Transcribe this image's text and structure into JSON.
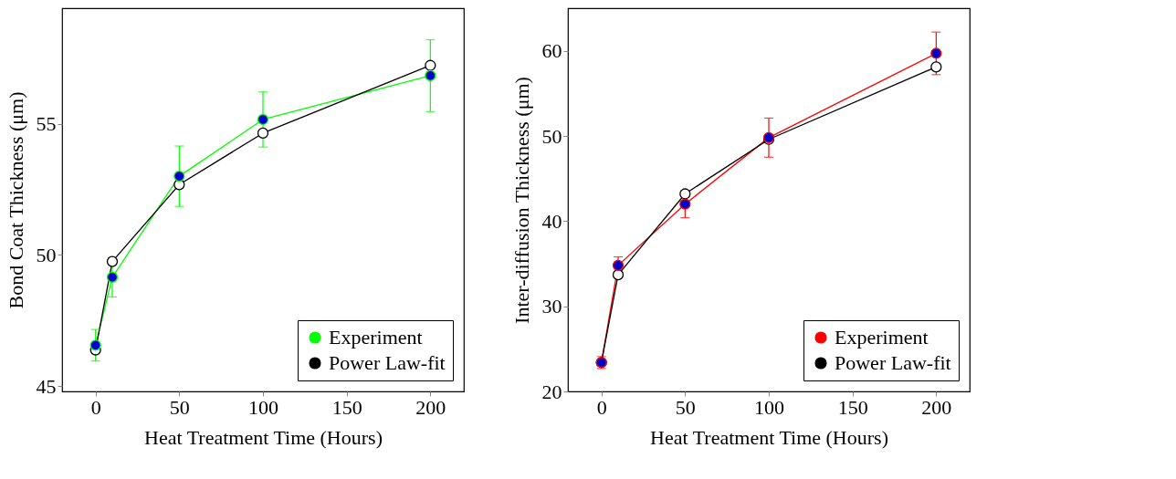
{
  "chart_data": [
    {
      "type": "line",
      "xlabel": "Heat Treatment Time (Hours)",
      "ylabel": "Bond Coat Thickness (μm)",
      "xlim": [
        -20,
        220
      ],
      "xticks": [
        0,
        50,
        100,
        150,
        200
      ],
      "ylim": [
        44.8,
        59.4
      ],
      "yticks": [
        45,
        50,
        55
      ],
      "grid": false,
      "legend": "bottom right",
      "marker": "circle",
      "line_style": "solid",
      "series": [
        {
          "name": "Experiment",
          "color": "#00ff00",
          "x": [
            0,
            10,
            50,
            100,
            200
          ],
          "values": [
            46.56,
            49.15,
            53.0,
            55.16,
            56.83
          ],
          "errors": [
            0.6,
            0.75,
            1.15,
            1.05,
            1.37
          ]
        },
        {
          "name": "Power Law-fit",
          "color": "#000000",
          "x": [
            0,
            10,
            50,
            100,
            200
          ],
          "values": [
            46.38,
            49.75,
            52.68,
            54.64,
            57.22
          ]
        }
      ]
    },
    {
      "type": "line",
      "xlabel": "Heat Treatment Time (Hours)",
      "ylabel": "Inter-diffusion Thickness (μm)",
      "xlim": [
        -20,
        220
      ],
      "xticks": [
        0,
        50,
        100,
        150,
        200
      ],
      "ylim": [
        20,
        65
      ],
      "yticks": [
        20,
        30,
        40,
        50,
        60
      ],
      "grid": false,
      "legend": "bottom right",
      "marker": "circle",
      "line_style": "solid",
      "series": [
        {
          "name": "Experiment",
          "color": "#ff0000",
          "x": [
            0,
            10,
            50,
            100,
            200
          ],
          "values": [
            23.4,
            34.8,
            42.0,
            49.8,
            59.7
          ],
          "errors": [
            0.7,
            1.0,
            1.6,
            2.3,
            2.5
          ]
        },
        {
          "name": "Power Law-fit",
          "color": "#000000",
          "x": [
            0,
            10,
            50,
            100,
            200
          ],
          "values": [
            23.4,
            33.7,
            43.2,
            49.6,
            58.1
          ]
        }
      ]
    }
  ]
}
